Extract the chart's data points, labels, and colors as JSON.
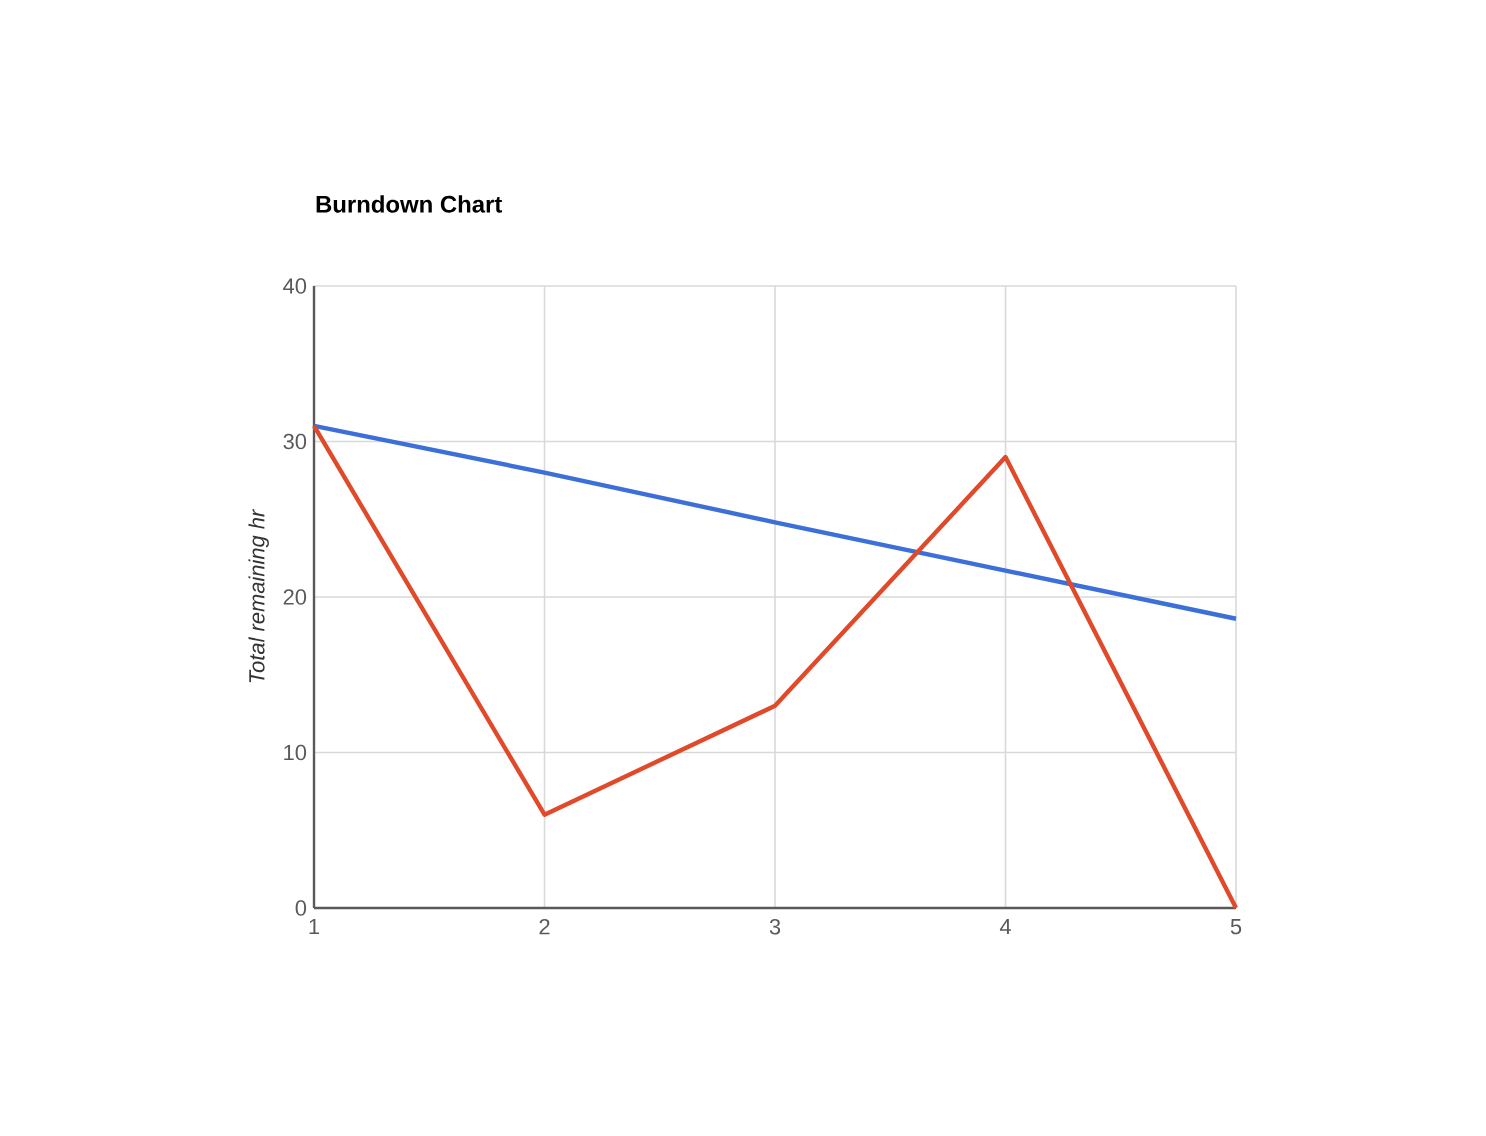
{
  "chart_data": {
    "type": "line",
    "title": "Burndown Chart",
    "ylabel": "Total remaining hr",
    "x": [
      1,
      2,
      3,
      4,
      5
    ],
    "series": [
      {
        "color": "#3c6fd8",
        "values": [
          31,
          28,
          24.8,
          21.7,
          18.6
        ]
      },
      {
        "color": "#e04a2a",
        "values": [
          31,
          6,
          13,
          29,
          0
        ]
      }
    ],
    "xlim": [
      1,
      5
    ],
    "xticks": [
      1,
      2,
      3,
      4,
      5
    ],
    "ylim": [
      0,
      40
    ],
    "yticks": [
      0,
      10,
      20,
      30,
      40
    ],
    "grid": true,
    "marker": "none",
    "line_style": "solid"
  }
}
